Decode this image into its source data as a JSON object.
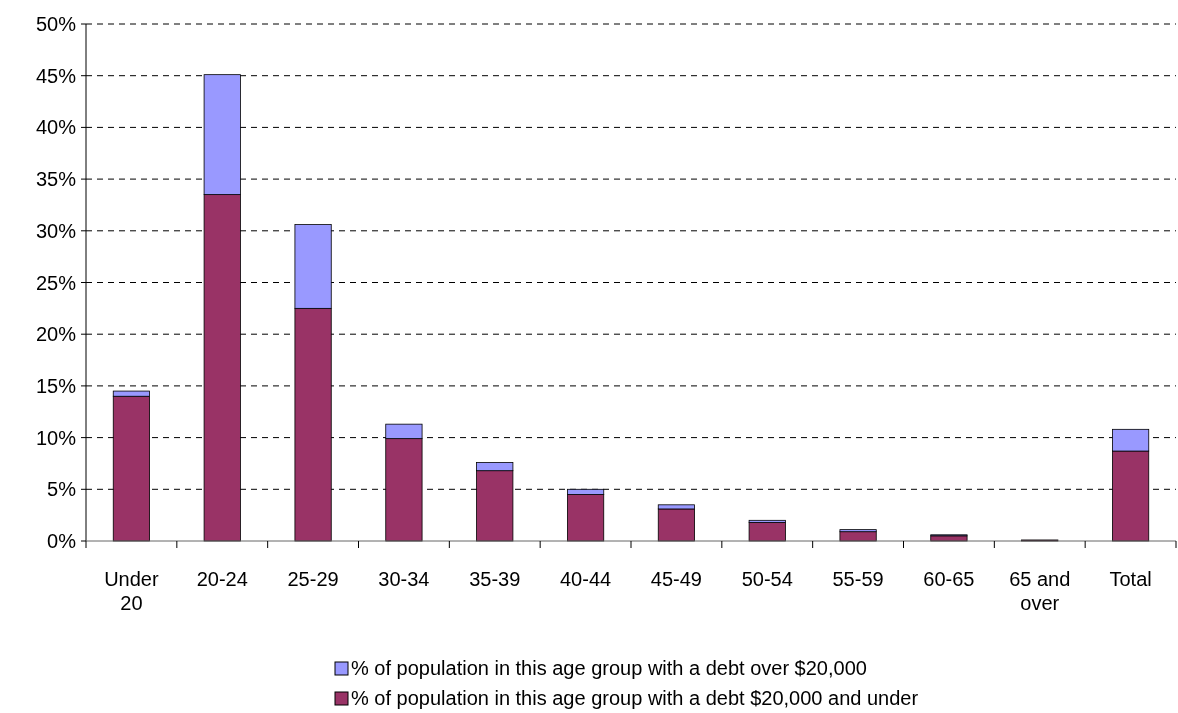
{
  "chart_data": {
    "type": "bar",
    "stacked": true,
    "categories": [
      "Under 20",
      "20-24",
      "25-29",
      "30-34",
      "35-39",
      "40-44",
      "45-49",
      "50-54",
      "55-59",
      "60-65",
      "65 and over",
      "Total"
    ],
    "series": [
      {
        "name": "% of population in this age group with a debt $20,000 and under",
        "color": "#993366",
        "values": [
          14.0,
          33.5,
          22.5,
          9.9,
          6.8,
          4.5,
          3.1,
          1.8,
          0.9,
          0.5,
          0.1,
          8.7
        ]
      },
      {
        "name": "% of population in this age group with a debt over $20,000",
        "color": "#9999ff",
        "values": [
          0.5,
          11.6,
          8.1,
          1.4,
          0.8,
          0.5,
          0.4,
          0.2,
          0.2,
          0.1,
          null,
          2.1
        ]
      }
    ],
    "ylim": [
      0,
      50
    ],
    "yticks": [
      {
        "value": 0,
        "label": "0%"
      },
      {
        "value": 5,
        "label": "5%"
      },
      {
        "value": 10,
        "label": "10%"
      },
      {
        "value": 15,
        "label": "15%"
      },
      {
        "value": 20,
        "label": "20%"
      },
      {
        "value": 25,
        "label": "25%"
      },
      {
        "value": 30,
        "label": "30%"
      },
      {
        "value": 35,
        "label": "35%"
      },
      {
        "value": 40,
        "label": "40%"
      },
      {
        "value": 45,
        "label": "45%"
      },
      {
        "value": 50,
        "label": "50%"
      }
    ],
    "grid": "y",
    "legend": "bottom"
  }
}
